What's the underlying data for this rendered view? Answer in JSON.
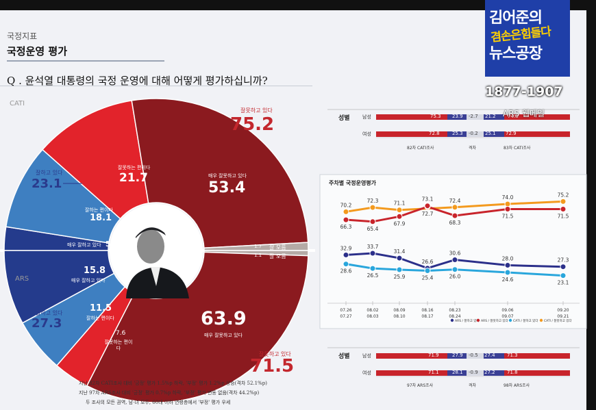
{
  "header": {
    "category": "국정지표",
    "title": "국정운영 평가",
    "question": "Q . 윤석열 대통령의 국정 운영에 대해 어떻게 평가하십니까?"
  },
  "donut": {
    "cati_tag": "CATI",
    "ars_tag": "ARS",
    "cati": {
      "bad_total_label": "잘못하고 있다",
      "bad_total": "75.2",
      "good_total_label": "잘하고 있다",
      "good_total": "23.1",
      "segments": [
        {
          "label": "매우 잘못하고 있다",
          "value": "53.4",
          "raw": 53.4,
          "color": "#8b1a1f"
        },
        {
          "label": "잘못하는 편이다",
          "value": "21.7",
          "raw": 21.7,
          "color": "#e2232b"
        },
        {
          "label": "잘하는 편이다",
          "value": "18.1",
          "raw": 18.1,
          "color": "#3e7fc1"
        },
        {
          "label": "매우 잘하고 있다",
          "value": "5.0",
          "raw": 5.0,
          "color": "#243b8c"
        }
      ],
      "dontknow": {
        "label": "잘 모름",
        "value": "1.7",
        "raw": 1.7
      }
    },
    "ars": {
      "bad_total_label": "잘못하고 있다",
      "bad_total": "71.5",
      "good_total_label": "잘하고 있다",
      "good_total": "27.3",
      "segments": [
        {
          "label": "매우 잘하고 있다",
          "value": "15.8",
          "raw": 15.8,
          "color": "#243b8c"
        },
        {
          "label": "잘하는 편이다",
          "value": "11.5",
          "raw": 11.5,
          "color": "#3e7fc1"
        },
        {
          "label": "잘못하는 편이다",
          "value": "7.6",
          "raw": 7.6,
          "color": "#e2232b"
        },
        {
          "label": "매우 잘못하고 있다",
          "value": "63.9",
          "raw": 63.9,
          "color": "#8b1a1f"
        }
      ],
      "dontknow": {
        "label": "잘 모름",
        "value": "1.1",
        "raw": 1.1
      }
    }
  },
  "footnotes": [
    "지난 82차 CATI조사 대비 '긍정' 평가 1.5%p 하락, '부정' 평가 1.2%p 상승(격차 52.1%p)",
    "지난 97차 ARS조사 대비 '긍정' 평가 0.7%p 하락, '부정' 평가 변동 없음(격차 44.2%p)",
    "두 조사의 모든 권역, 남·녀 모두, 60대 이하 연령층에서 '부정' 평가 우세"
  ],
  "gender_cati": {
    "row_header": "성별",
    "rows": [
      {
        "label": "남성",
        "prev_bad": "75.3",
        "prev_good": "23.9",
        "gap": "-2.7",
        "cur_good": "21.2",
        "cur_bad": "74.8"
      },
      {
        "label": "여성",
        "prev_bad": "72.8",
        "prev_good": "25.3",
        "gap": "-0.2",
        "cur_good": "25.1",
        "cur_bad": "72.9"
      }
    ],
    "foot": {
      "prev": "82차 CATI조사",
      "gap": "격차",
      "cur": "83차 CATI조사"
    }
  },
  "gender_ars": {
    "row_header": "성별",
    "rows": [
      {
        "label": "남성",
        "prev_bad": "71.9",
        "prev_good": "27.9",
        "gap": "-0.5",
        "cur_good": "27.4",
        "cur_bad": "71.3"
      },
      {
        "label": "여성",
        "prev_bad": "71.1",
        "prev_good": "28.1",
        "gap": "-0.9",
        "cur_good": "27.2",
        "cur_bad": "71.8"
      }
    ],
    "foot": {
      "prev": "97차 ARS조사",
      "gap": "격차",
      "cur": "98차 ARS조사"
    }
  },
  "chart_data": {
    "type": "line",
    "title": "주차별 국정운영평가",
    "x": [
      "07.26\n07.27",
      "08.02\n08.03",
      "08.09\n08.10",
      "08.16\n08.17",
      "08.23\n08.24",
      "09.06\n09.07",
      "09.20\n09.21"
    ],
    "series": [
      {
        "name": "CATI / 잘못하고 있다",
        "color": "#f39a1e",
        "values": [
          70.2,
          72.3,
          71.1,
          null,
          72.4,
          74.0,
          75.2
        ]
      },
      {
        "name": "ARS / 잘못하고 있다",
        "color": "#c8242b",
        "values": [
          66.3,
          65.4,
          67.9,
          72.7,
          68.3,
          71.5,
          71.5
        ]
      },
      {
        "name": "ARS / 잘하고 있다",
        "color": "#2b2f8a",
        "values": [
          32.9,
          33.7,
          31.4,
          26.6,
          30.6,
          28.0,
          27.3
        ]
      },
      {
        "name": "CATI / 잘하고 있다",
        "color": "#29a6dc",
        "values": [
          28.6,
          26.5,
          25.9,
          25.4,
          26.0,
          24.6,
          23.1
        ]
      }
    ],
    "extra_point": {
      "x_index": 3,
      "value": 73.1
    }
  },
  "overlay": {
    "line1": "김어준의",
    "line2": "겸손은힘들다",
    "line3": "뉴스공장",
    "phone": "1877-1907",
    "ars": "ARS 웹메일"
  }
}
